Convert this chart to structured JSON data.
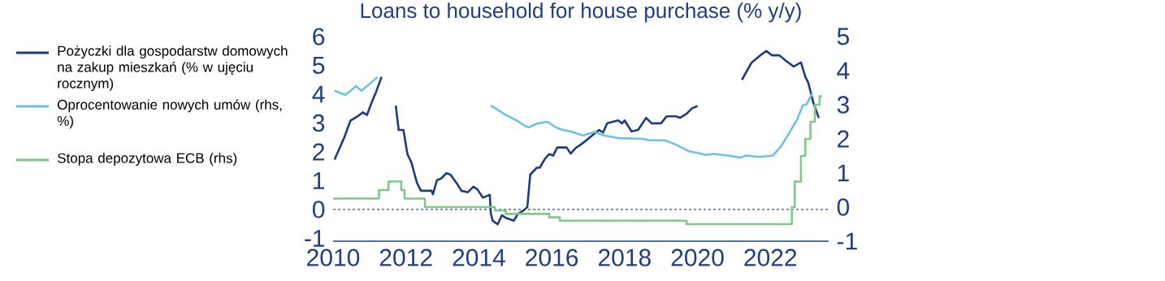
{
  "chart_data": {
    "type": "line",
    "title": "Loans to household for house purchase (% y/y)",
    "xlim": [
      2010,
      2023.6
    ],
    "xticks": [
      2010,
      2012,
      2014,
      2016,
      2018,
      2020,
      2022
    ],
    "ylim": [
      -1.1,
      6
    ],
    "yticks": [
      -1,
      0,
      1,
      2,
      3,
      4,
      5,
      6
    ],
    "y2lim": [
      -1,
      5
    ],
    "y2ticks": [
      -1,
      0,
      1,
      2,
      3,
      4,
      5
    ],
    "legend": "left",
    "ref_lines": [
      {
        "axis": "y",
        "value": 0,
        "color": "#2f4f8f",
        "line_style": "dashed"
      }
    ],
    "series": [
      {
        "name": "Pożyczki dla gospodarstw domowych na zakup mieszkań (% w ujęciu rocznym)",
        "color": "#1c3c7c",
        "x": [
          2010.04,
          2010.3,
          2010.48,
          2010.67,
          2010.82,
          2010.93,
          2011.07,
          2011.18,
          2011.33,
          2011.5,
          2011.72,
          2011.8,
          2011.93,
          2012.04,
          2012.15,
          2012.3,
          2012.41,
          2012.7,
          2012.74,
          2012.85,
          2012.96,
          2013.11,
          2013.22,
          2013.41,
          2013.52,
          2013.7,
          2013.85,
          2013.96,
          2014.11,
          2014.3,
          2014.33,
          2014.38,
          2014.52,
          2014.63,
          2014.74,
          2014.96,
          2015.07,
          2015.22,
          2015.33,
          2015.41,
          2015.59,
          2015.67,
          2015.82,
          2015.93,
          2016.04,
          2016.15,
          2016.41,
          2016.52,
          2016.67,
          2016.74,
          2016.89,
          2017.11,
          2017.3,
          2017.41,
          2017.52,
          2017.67,
          2017.82,
          2017.93,
          2018.0,
          2018.19,
          2018.37,
          2018.59,
          2018.74,
          2019.0,
          2019.15,
          2019.41,
          2019.52,
          2019.7,
          2019.85,
          2020.0,
          2020.6,
          2021.22,
          2021.48,
          2021.73,
          2021.89,
          2022.04,
          2022.24,
          2022.44,
          2022.64,
          2022.84,
          2022.96,
          2023.04,
          2023.18,
          2023.33
        ],
        "values": [
          1.73,
          2.48,
          3.09,
          3.23,
          3.37,
          3.28,
          3.75,
          4.08,
          4.6,
          null,
          3.6,
          2.76,
          2.76,
          1.92,
          1.63,
          0.93,
          0.65,
          0.65,
          0.53,
          1.02,
          1.07,
          1.26,
          1.21,
          0.88,
          0.65,
          0.6,
          0.79,
          0.7,
          0.41,
          0.51,
          -0.15,
          -0.39,
          -0.51,
          -0.2,
          -0.29,
          -0.39,
          -0.15,
          -0.04,
          0.08,
          1.21,
          1.45,
          1.45,
          1.77,
          1.92,
          1.87,
          2.15,
          2.15,
          1.94,
          2.15,
          2.2,
          2.34,
          2.57,
          2.76,
          2.67,
          2.99,
          3.04,
          3.09,
          2.99,
          3.09,
          2.71,
          2.76,
          3.18,
          2.99,
          2.99,
          3.23,
          3.23,
          3.18,
          3.32,
          3.51,
          3.59,
          null,
          4.5,
          5.09,
          5.35,
          5.5,
          5.35,
          5.35,
          5.15,
          4.96,
          5.1,
          4.6,
          4.4,
          3.7,
          3.18
        ]
      },
      {
        "name": "Oprocentowanie nowych umów (rhs, %)",
        "color": "#6cc0ea",
        "axis": "y2",
        "x": [
          2010.04,
          2010.33,
          2010.48,
          2010.63,
          2010.78,
          2011.0,
          2011.22,
          2012.8,
          2014.33,
          2014.74,
          2015.04,
          2015.26,
          2015.37,
          2015.63,
          2015.89,
          2016.11,
          2016.3,
          2016.52,
          2016.85,
          2017.18,
          2017.44,
          2017.85,
          2018.52,
          2018.67,
          2019.11,
          2019.41,
          2019.78,
          2020.0,
          2020.22,
          2020.44,
          2020.82,
          2021.18,
          2021.33,
          2021.7,
          2022.07,
          2022.3,
          2022.52,
          2022.74,
          2022.89,
          2023.0,
          2023.15
        ],
        "values": [
          3.41,
          3.29,
          3.41,
          3.55,
          3.41,
          3.61,
          3.81,
          null,
          2.98,
          2.7,
          2.54,
          2.38,
          2.34,
          2.46,
          2.5,
          2.34,
          2.26,
          2.22,
          2.1,
          2.2,
          2.1,
          2.02,
          2.0,
          1.96,
          1.96,
          1.83,
          1.63,
          1.59,
          1.53,
          1.56,
          1.51,
          1.45,
          1.51,
          1.47,
          1.51,
          1.79,
          2.18,
          2.58,
          2.98,
          3.02,
          3.33
        ]
      },
      {
        "name": "Stopa depozytowa ECB (rhs)",
        "color": "#7ec98a",
        "axis": "y2",
        "type": "step",
        "x": [
          2010.0,
          2011.26,
          2011.52,
          2011.87,
          2011.96,
          2012.52,
          2014.44,
          2014.74,
          2015.93,
          2016.22,
          2019.7,
          2022.59,
          2022.67,
          2022.84,
          2022.96,
          2023.1,
          2023.22,
          2023.35,
          2023.42
        ],
        "values": [
          0.25,
          0.5,
          0.75,
          0.5,
          0.25,
          0,
          -0.1,
          -0.2,
          -0.3,
          -0.4,
          -0.5,
          0,
          0.75,
          1.5,
          2,
          2.5,
          3,
          3.25,
          3.25
        ]
      }
    ]
  }
}
